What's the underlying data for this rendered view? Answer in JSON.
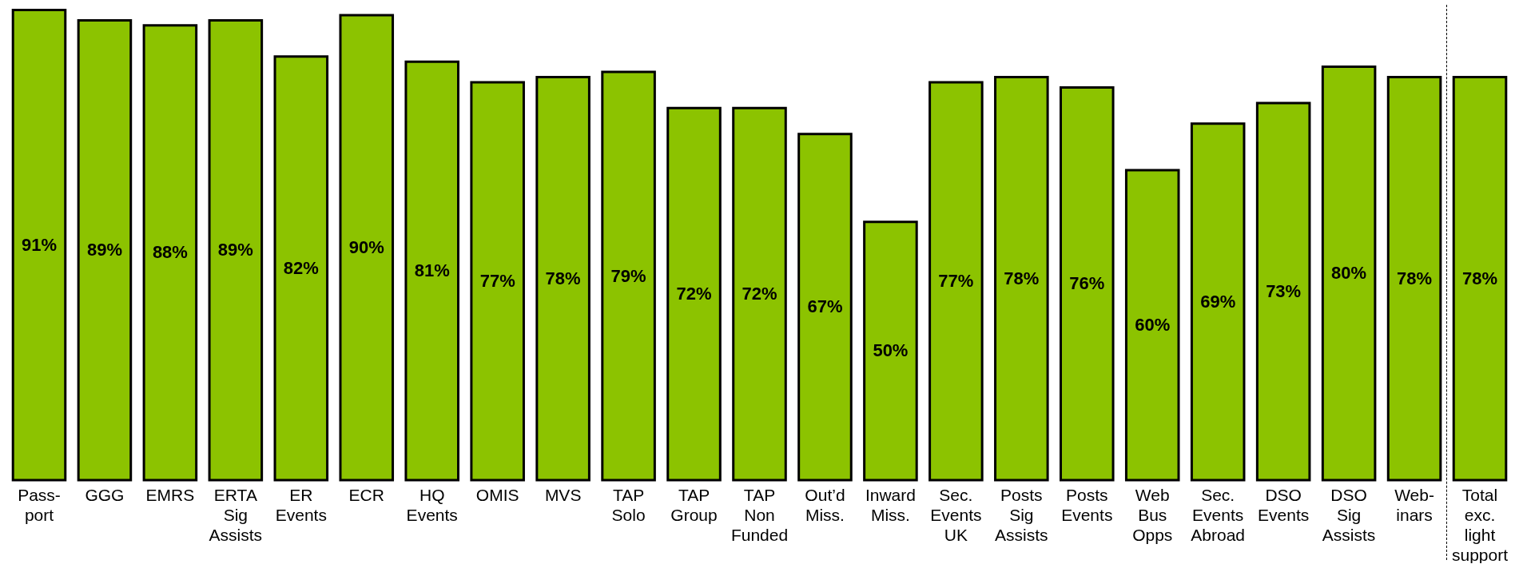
{
  "chart_data": {
    "type": "bar",
    "categories": [
      "Pass-\nport",
      "GGG",
      "EMRS",
      "ERTA\nSig\nAssists",
      "ER\nEvents",
      "ECR",
      "HQ\nEvents",
      "OMIS",
      "MVS",
      "TAP\nSolo",
      "TAP\nGroup",
      "TAP\nNon\nFunded",
      "Out’d\nMiss.",
      "Inward\nMiss.",
      "Sec.\nEvents\nUK",
      "Posts\nSig\nAssists",
      "Posts\nEvents",
      "Web\nBus\nOpps",
      "Sec.\nEvents\nAbroad",
      "DSO\nEvents",
      "DSO\nSig\nAssists",
      "Web-\ninars",
      "Total\nexc.\nlight\nsupport"
    ],
    "values": [
      91,
      89,
      88,
      89,
      82,
      90,
      81,
      77,
      78,
      79,
      72,
      72,
      67,
      50,
      77,
      78,
      76,
      60,
      69,
      73,
      80,
      78,
      78
    ],
    "value_labels": [
      "91%",
      "89%",
      "88%",
      "89%",
      "82%",
      "90%",
      "81%",
      "77%",
      "78%",
      "79%",
      "72%",
      "72%",
      "67%",
      "50%",
      "77%",
      "78%",
      "76%",
      "60%",
      "69%",
      "73%",
      "80%",
      "78%",
      "78%"
    ],
    "color": "#8cc300",
    "ylim": [
      0,
      92
    ],
    "tick_labels": "x",
    "grid": false
  }
}
